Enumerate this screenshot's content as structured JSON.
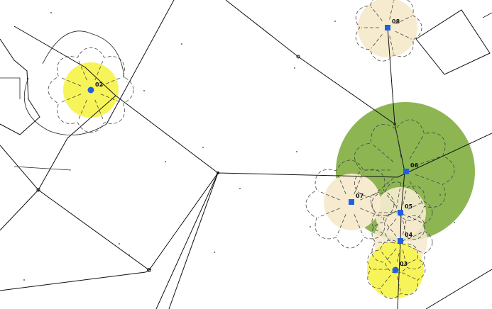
{
  "colors": {
    "canopy_green": "#8db653",
    "canopy_beige": "#f6ebcf",
    "canopy_yellow": "#f7f45a",
    "marker_blue": "#1f5fe0",
    "linework": "#111111"
  },
  "map": {
    "markers": [
      {
        "id": "02",
        "label": "02",
        "shape": "circle",
        "canopy": "yellow"
      },
      {
        "id": "08",
        "label": "08",
        "shape": "square",
        "canopy": "beige"
      },
      {
        "id": "06",
        "label": "06",
        "shape": "square",
        "canopy": "green"
      },
      {
        "id": "07",
        "label": "07",
        "shape": "square",
        "canopy": "beige"
      },
      {
        "id": "05",
        "label": "05",
        "shape": "square",
        "canopy": "beige"
      },
      {
        "id": "04",
        "label": "04",
        "shape": "square",
        "canopy": "beige"
      },
      {
        "id": "03",
        "label": "03",
        "shape": "circle",
        "canopy": "yellow"
      }
    ]
  }
}
